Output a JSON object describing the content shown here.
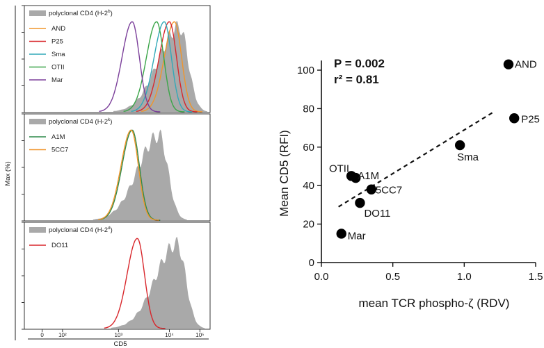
{
  "chart_data": [
    {
      "type": "area",
      "panel": "histograms",
      "ylabel": "Max (%)",
      "xlabel": "CD5",
      "x_tick_labels": [
        "0",
        "10²",
        "10³",
        "10⁴",
        "10⁵"
      ],
      "log_x": true,
      "panels": [
        {
          "background_series": {
            "label": "polyclonal CD4 (H-2",
            "superscript": "b",
            "label_end": ")",
            "color": "#a9a9a9"
          },
          "series": [
            {
              "name": "AND",
              "color": "#f0952b",
              "peak_log10": 4.55
            },
            {
              "name": "P25",
              "color": "#d8262b",
              "peak_log10": 4.45
            },
            {
              "name": "Sma",
              "color": "#31a9b8",
              "peak_log10": 4.35
            },
            {
              "name": "OTII",
              "color": "#3aa548",
              "peak_log10": 4.2
            },
            {
              "name": "Mar",
              "color": "#7b3f9a",
              "peak_log10": 3.72
            }
          ],
          "background_peak_log10": 4.65
        },
        {
          "background_series": {
            "label": "polyclonal CD4 (H-2",
            "superscript": "k",
            "label_end": ")",
            "color": "#a9a9a9"
          },
          "series": [
            {
              "name": "A1M",
              "color": "#2f8a4a",
              "peak_log10": 3.72
            },
            {
              "name": "5CC7",
              "color": "#f0952b",
              "peak_log10": 3.7
            }
          ],
          "background_peak_log10": 4.25
        },
        {
          "background_series": {
            "label": "polyclonal CD4 (H-2",
            "superscript": "d",
            "label_end": ")",
            "color": "#a9a9a9"
          },
          "series": [
            {
              "name": "DO11",
              "color": "#d8262b",
              "peak_log10": 3.82
            }
          ],
          "background_peak_log10": 4.6
        }
      ]
    },
    {
      "type": "scatter",
      "panel": "correlation",
      "xlabel": "mean TCR phospho-ζ (RDV)",
      "ylabel": "Mean CD5 (RFI)",
      "xlim": [
        0,
        1.5
      ],
      "ylim": [
        0,
        100
      ],
      "x_ticks": [
        0.0,
        0.5,
        1.0,
        1.5
      ],
      "x_tick_labels": [
        "0.0",
        "0.5",
        "1.0",
        "1.5"
      ],
      "y_ticks": [
        0,
        20,
        40,
        60,
        80,
        100
      ],
      "y_tick_labels": [
        "0",
        "20",
        "40",
        "60",
        "80",
        "100"
      ],
      "annotations": [
        "P = 0.002",
        "r² = 0.81"
      ],
      "points": [
        {
          "label": "AND",
          "x": 1.31,
          "y": 103
        },
        {
          "label": "P25",
          "x": 1.35,
          "y": 75
        },
        {
          "label": "Sma",
          "x": 0.97,
          "y": 61
        },
        {
          "label": "OTII",
          "x": 0.21,
          "y": 45
        },
        {
          "label": "A1M",
          "x": 0.24,
          "y": 44
        },
        {
          "label": "5CC7",
          "x": 0.35,
          "y": 38
        },
        {
          "label": "DO11",
          "x": 0.27,
          "y": 31
        },
        {
          "label": "Mar",
          "x": 0.14,
          "y": 15
        }
      ],
      "trend_line": {
        "x0": 0.12,
        "y0": 29,
        "x1": 1.2,
        "y1": 78,
        "style": "dashed"
      }
    }
  ]
}
